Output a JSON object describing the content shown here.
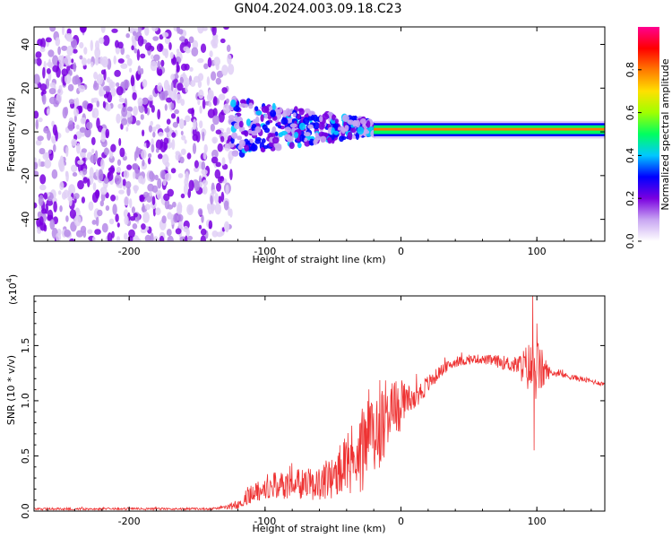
{
  "title": "GN04.2024.003.09.18.C23",
  "chart_data": [
    {
      "type": "heatmap",
      "name": "spectrogram",
      "xlabel": "Height of straight line (km)",
      "ylabel": "Frequency (Hz)",
      "xlim": [
        -270,
        150
      ],
      "ylim": [
        -50,
        48
      ],
      "xticks": [
        -200,
        -100,
        0,
        100
      ],
      "yticks": [
        -40,
        -20,
        0,
        20,
        40
      ],
      "colorbar": {
        "label": "Normalized spectral amplitude",
        "range": [
          0.0,
          1.0
        ],
        "ticks": [
          "0.0",
          "0.2",
          "0.4",
          "0.6",
          "0.8"
        ],
        "colors": [
          "#ffffff",
          "#c8a6f2",
          "#7a00e0",
          "#0000ff",
          "#00c8ff",
          "#00ff60",
          "#a0ff00",
          "#ffe000",
          "#ff7800",
          "#ff0000",
          "#ff0090"
        ]
      },
      "regions": [
        {
          "label": "noise",
          "x": [
            -270,
            -125
          ],
          "f": [
            -50,
            48
          ],
          "amplitude": 0.15
        },
        {
          "label": "turbulent",
          "x": [
            -125,
            -20
          ],
          "f": [
            -8,
            12
          ],
          "amplitude": 0.4
        },
        {
          "label": "narrowband",
          "x": [
            -20,
            150
          ],
          "f": [
            -1,
            3
          ],
          "amplitude": 0.75
        }
      ]
    },
    {
      "type": "line",
      "name": "snr",
      "xlabel": "Height of straight line (km)",
      "ylabel": "SNR (10 * v/v)",
      "scale_label": "(x10",
      "scale_exponent": "4",
      "scale_close": ")",
      "xlim": [
        -270,
        150
      ],
      "ylim": [
        0,
        1.95
      ],
      "xticks": [
        -200,
        -100,
        0,
        100
      ],
      "yticks": [
        "0.0",
        "0.5",
        "1.0",
        "1.5"
      ],
      "color": "#ee3333",
      "envelope": {
        "x": [
          -270,
          -200,
          -140,
          -125,
          -110,
          -100,
          -80,
          -60,
          -45,
          -35,
          -25,
          -18,
          -10,
          0,
          10,
          20,
          30,
          40,
          55,
          70,
          85,
          95,
          100,
          105,
          120,
          150
        ],
        "y": [
          0.02,
          0.02,
          0.02,
          0.04,
          0.16,
          0.22,
          0.24,
          0.25,
          0.35,
          0.45,
          0.6,
          0.75,
          0.9,
          0.95,
          1.02,
          1.15,
          1.28,
          1.35,
          1.38,
          1.36,
          1.32,
          1.3,
          1.28,
          1.27,
          1.23,
          1.15
        ]
      },
      "noise_amplitude": {
        "x": [
          -270,
          -130,
          -120,
          -100,
          -60,
          -40,
          -20,
          -5,
          10,
          30,
          60,
          85,
          95,
          100,
          110,
          150
        ],
        "y": [
          0.01,
          0.01,
          0.06,
          0.12,
          0.15,
          0.3,
          0.45,
          0.3,
          0.12,
          0.05,
          0.04,
          0.08,
          0.25,
          0.3,
          0.03,
          0.02
        ]
      },
      "spikes": [
        {
          "x": 97,
          "y": 1.95
        },
        {
          "x": 98,
          "y": 0.55
        },
        {
          "x": 100,
          "y": 1.7
        }
      ]
    }
  ]
}
